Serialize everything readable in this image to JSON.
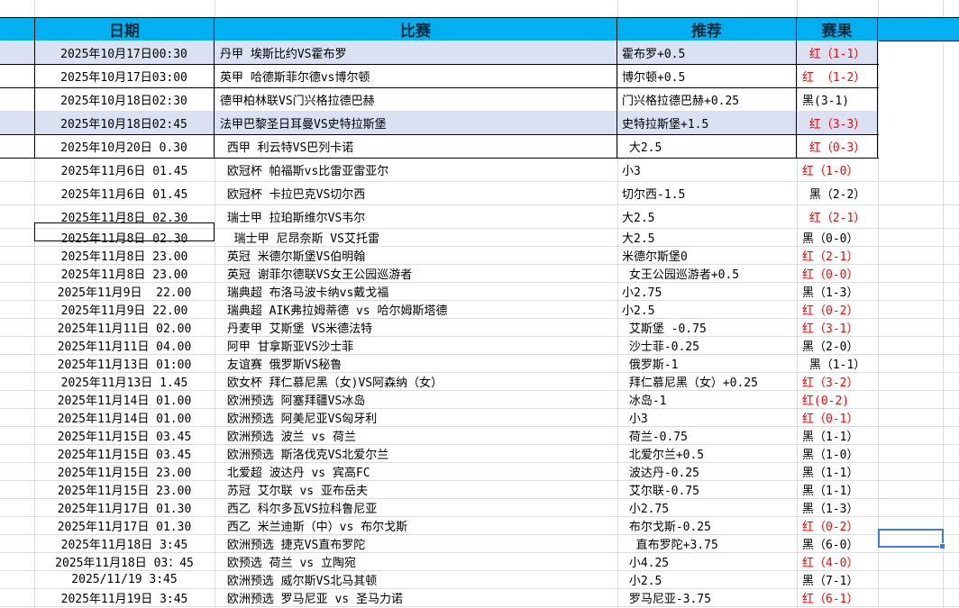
{
  "header": {
    "date": "日期",
    "match": "比赛",
    "pick": "推荐",
    "result": "赛果"
  },
  "colors": {
    "header_bg": "#00b0f0",
    "highlight_row": "#d9e1f2",
    "win": "#ff0000",
    "loss": "#000000"
  },
  "rows": [
    {
      "date": "2025年10月17日00:30",
      "match": "丹甲 埃斯比约VS霍布罗",
      "pick": "霍布罗+0.5",
      "result": " 红（1-1）",
      "win": true,
      "hl": true
    },
    {
      "date": "2025年10月17日03:00",
      "match": "英甲 哈德斯菲尔德vs博尔顿",
      "pick": "博尔顿+0.5",
      "result": "红 （1-2）",
      "win": true
    },
    {
      "date": "2025年10月18日02:30",
      "match": "德甲柏林联VS门兴格拉德巴赫",
      "pick": "门兴格拉德巴赫+0.25",
      "result": "黑(3-1)",
      "win": false
    },
    {
      "date": "2025年10月18日02:45",
      "match": "法甲巴黎圣日耳曼VS史特拉斯堡",
      "pick": "史特拉斯堡+1.5",
      "result": " 红（3-3）",
      "win": true,
      "hl": true
    },
    {
      "date": "2025年10月20日 0.30",
      "match": " 西甲 利云特VS巴列卡诺",
      "pick": " 大2.5",
      "result": " 红（0-3）",
      "win": true
    },
    {
      "date": "2025年11月6日 01.45",
      "match": " 欧冠杯 帕福斯vs比雷亚雷亚尔",
      "pick": "小3",
      "result": "红（1-0）",
      "win": true
    },
    {
      "date": "2025年11月6日 01.45",
      "match": " 欧冠杯 卡拉巴克VS切尔西",
      "pick": "切尔西-1.5",
      "result": " 黑（2-2）",
      "win": false
    },
    {
      "date": "2025年11月8日 02.30",
      "match": " 瑞士甲 拉珀斯维尔VS韦尔",
      "pick": "大2.5",
      "result": " 红（2-1）",
      "win": true
    },
    {
      "date": "2025年11月8日 02.30",
      "match": "  瑞士甲 尼昂奈斯 VS艾托雷",
      "pick": "大2.5",
      "result": "黑（0-0）",
      "win": false
    },
    {
      "date": "2025年11月8日 23.00",
      "match": " 英冠 米德尔斯堡VS伯明翰",
      "pick": "米德尔斯堡0",
      "result": "红（2-1）",
      "win": true
    },
    {
      "date": "2025年11月8日 23.00",
      "match": " 英冠 谢菲尔德联VS女王公园巡游者",
      "pick": " 女王公园巡游者+0.5",
      "result": "红（0-0）",
      "win": true
    },
    {
      "date": "2025年11月9日  22.00",
      "match": " 瑞典超 布洛马波卡纳vs戴戈福",
      "pick": "小2.75",
      "result": "黑（1-3）",
      "win": false
    },
    {
      "date": "2025年11月9日 22.00",
      "match": " 瑞典超 AIK弗拉姆蒂德 vs 哈尔姆斯塔德",
      "pick": "小2.5",
      "result": "红（0-2）",
      "win": true
    },
    {
      "date": "2025年11月11日 02.00",
      "match": " 丹麦甲 艾斯堡 VS米德法特",
      "pick": " 艾斯堡 -0.75",
      "result": "红（3-1）",
      "win": true
    },
    {
      "date": "2025年11月11日 04.00",
      "match": " 阿甲 甘拿斯亚VS沙士菲",
      "pick": " 沙士菲-0.25",
      "result": "黑（2-0）",
      "win": false
    },
    {
      "date": "2025年11月13日 01:00",
      "match": " 友谊赛 俄罗斯VS秘鲁",
      "pick": " 俄罗斯-1",
      "result": " 黑（1-1）",
      "win": false
    },
    {
      "date": "2025年11月13日 1.45",
      "match": " 欧女杯 拜仁慕尼黑（女)VS阿森纳（女）",
      "pick": " 拜仁慕尼黑（女）+0.25",
      "result": "红（3-2）",
      "win": true
    },
    {
      "date": "2025年11月14日 01.00",
      "match": " 欧洲预选 阿塞拜疆VS冰岛",
      "pick": " 冰岛-1",
      "result": "红(0-2)",
      "win": true
    },
    {
      "date": "2025年11月14日 01.00",
      "match": " 欧洲预选 阿美尼亚VS匈牙利",
      "pick": " 小3",
      "result": "红（0-1）",
      "win": true
    },
    {
      "date": "2025年11月15日 03.45",
      "match": " 欧洲预选 波兰 vs 荷兰",
      "pick": " 荷兰-0.75",
      "result": "黑（1-1）",
      "win": false
    },
    {
      "date": "2025年11月15日 03.45",
      "match": " 欧洲预选 斯洛伐克VS北爱尔兰",
      "pick": " 北爱尔兰+0.5",
      "result": "黑（1-0）",
      "win": false
    },
    {
      "date": "2025年11月15日 23.00",
      "match": " 北爱超 波达丹 vs 宾高FC",
      "pick": " 波达丹-0.25",
      "result": "黑（1-1）",
      "win": false
    },
    {
      "date": "2025年11月15日 23.00",
      "match": " 苏冠 艾尔联 vs 亚布岳夫",
      "pick": " 艾尔联-0.75",
      "result": "黑（1-1）",
      "win": false
    },
    {
      "date": "2025年11月17日 01.30",
      "match": " 西乙 科尔多瓦VS拉科鲁尼亚",
      "pick": " 小2.75",
      "result": "黑（1-3）",
      "win": false
    },
    {
      "date": "2025年11月17日 01.30",
      "match": " 西乙 米兰迪斯（中）vs 布尔戈斯",
      "pick": " 布尔戈斯-0.25",
      "result": "红（0-2）",
      "win": true
    },
    {
      "date": "2025年11月18日 3:45",
      "match": " 欧洲预选 捷克VS直布罗陀",
      "pick": "  直布罗陀+3.75",
      "result": "黑（6-0）",
      "win": false
    },
    {
      "date": "2025年11月18日 03：45",
      "match": " 欧预选 荷兰 vs 立陶宛",
      "pick": " 小4.25",
      "result": "红（4-0）",
      "win": true
    },
    {
      "date": "2025/11/19 3:45",
      "match": " 欧洲预选 威尔斯VS北马其顿",
      "pick": " 小2.5",
      "result": "黑（7-1）",
      "win": false
    },
    {
      "date": "2025年11月19日 3:45",
      "match": " 欧洲预选 罗马尼亚 vs 圣马力诺",
      "pick": " 罗马尼亚-3.75",
      "result": "红（6-1）",
      "win": true
    }
  ]
}
